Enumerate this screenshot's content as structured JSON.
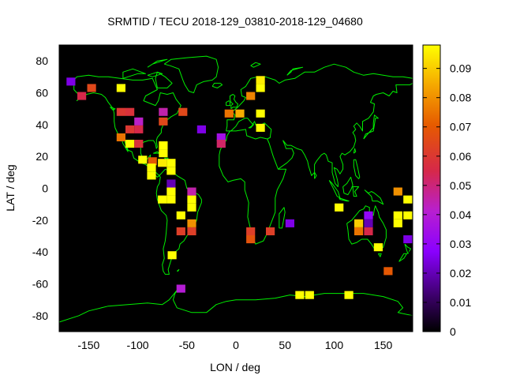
{
  "chart_data": {
    "type": "heatmap",
    "title": "SRMTID / TECU 2018-129_03810-2018-129_04680",
    "xlabel": "LON / deg",
    "ylabel": "LAT / deg",
    "xlim": [
      -180,
      180
    ],
    "ylim": [
      -90,
      90
    ],
    "xticks": [
      -150,
      -100,
      -50,
      0,
      50,
      100,
      150
    ],
    "yticks": [
      -80,
      -60,
      -40,
      -20,
      0,
      20,
      40,
      60,
      80
    ],
    "colorbar": {
      "min": 0,
      "max": 0.098,
      "ticks": [
        0,
        0.01,
        0.02,
        0.03,
        0.04,
        0.05,
        0.06,
        0.07,
        0.08,
        0.09
      ]
    },
    "cell_size_deg": {
      "lon": 9,
      "lat": 5
    },
    "cells": [
      {
        "lon": -168,
        "lat": 67,
        "value": 0.025
      },
      {
        "lon": -147,
        "lat": 63,
        "value": 0.065
      },
      {
        "lon": -157,
        "lat": 58,
        "value": 0.055
      },
      {
        "lon": -117,
        "lat": 63,
        "value": 0.098
      },
      {
        "lon": -117,
        "lat": 48,
        "value": 0.06
      },
      {
        "lon": -108,
        "lat": 48,
        "value": 0.058
      },
      {
        "lon": -99,
        "lat": 42,
        "value": 0.042
      },
      {
        "lon": -99,
        "lat": 37,
        "value": 0.055
      },
      {
        "lon": -108,
        "lat": 37,
        "value": 0.06
      },
      {
        "lon": -117,
        "lat": 32,
        "value": 0.075
      },
      {
        "lon": -108,
        "lat": 28,
        "value": 0.098
      },
      {
        "lon": -99,
        "lat": 28,
        "value": 0.058
      },
      {
        "lon": -74,
        "lat": 48,
        "value": 0.045
      },
      {
        "lon": -74,
        "lat": 42,
        "value": 0.065
      },
      {
        "lon": -54,
        "lat": 48,
        "value": 0.065
      },
      {
        "lon": -74,
        "lat": 27,
        "value": 0.098
      },
      {
        "lon": -74,
        "lat": 22,
        "value": 0.098
      },
      {
        "lon": -95,
        "lat": 18,
        "value": 0.098
      },
      {
        "lon": -85,
        "lat": 17,
        "value": 0.07
      },
      {
        "lon": -75,
        "lat": 16,
        "value": 0.095
      },
      {
        "lon": -86,
        "lat": 13,
        "value": 0.098
      },
      {
        "lon": -86,
        "lat": 8,
        "value": 0.098
      },
      {
        "lon": -66,
        "lat": 16,
        "value": 0.098
      },
      {
        "lon": -66,
        "lat": 11,
        "value": 0.098
      },
      {
        "lon": -66,
        "lat": 3,
        "value": 0.02
      },
      {
        "lon": -66,
        "lat": -2,
        "value": 0.098
      },
      {
        "lon": -66,
        "lat": -7,
        "value": 0.098
      },
      {
        "lon": -75,
        "lat": -7,
        "value": 0.098
      },
      {
        "lon": -45,
        "lat": -2,
        "value": 0.045
      },
      {
        "lon": -45,
        "lat": -7,
        "value": 0.098
      },
      {
        "lon": -45,
        "lat": -12,
        "value": 0.098
      },
      {
        "lon": -56,
        "lat": -17,
        "value": 0.098
      },
      {
        "lon": -45,
        "lat": -22,
        "value": 0.08
      },
      {
        "lon": -56,
        "lat": -27,
        "value": 0.062
      },
      {
        "lon": -45,
        "lat": -27,
        "value": 0.062
      },
      {
        "lon": -65,
        "lat": -42,
        "value": 0.098
      },
      {
        "lon": -56,
        "lat": -63,
        "value": 0.04
      },
      {
        "lon": -35,
        "lat": 37,
        "value": 0.025
      },
      {
        "lon": -15,
        "lat": 32,
        "value": 0.035
      },
      {
        "lon": -15,
        "lat": 28,
        "value": 0.052
      },
      {
        "lon": -7,
        "lat": 47,
        "value": 0.075
      },
      {
        "lon": 4,
        "lat": 47,
        "value": 0.085
      },
      {
        "lon": 15,
        "lat": 58,
        "value": 0.078
      },
      {
        "lon": 25,
        "lat": 68,
        "value": 0.095
      },
      {
        "lon": 25,
        "lat": 63,
        "value": 0.098
      },
      {
        "lon": 25,
        "lat": 47,
        "value": 0.098
      },
      {
        "lon": 25,
        "lat": 38,
        "value": 0.098
      },
      {
        "lon": 15,
        "lat": -27,
        "value": 0.062
      },
      {
        "lon": 15,
        "lat": -32,
        "value": 0.068
      },
      {
        "lon": 35,
        "lat": -27,
        "value": 0.062
      },
      {
        "lon": 55,
        "lat": -22,
        "value": 0.025
      },
      {
        "lon": 65,
        "lat": -67,
        "value": 0.098
      },
      {
        "lon": 75,
        "lat": -67,
        "value": 0.098
      },
      {
        "lon": 115,
        "lat": -67,
        "value": 0.098
      },
      {
        "lon": 105,
        "lat": -12,
        "value": 0.098
      },
      {
        "lon": 125,
        "lat": -22,
        "value": 0.09
      },
      {
        "lon": 125,
        "lat": -27,
        "value": 0.075
      },
      {
        "lon": 135,
        "lat": -17,
        "value": 0.03
      },
      {
        "lon": 135,
        "lat": -22,
        "value": 0.02
      },
      {
        "lon": 135,
        "lat": -27,
        "value": 0.055
      },
      {
        "lon": 145,
        "lat": -37,
        "value": 0.098
      },
      {
        "lon": 155,
        "lat": -52,
        "value": 0.07
      },
      {
        "lon": 165,
        "lat": -2,
        "value": 0.08
      },
      {
        "lon": 165,
        "lat": -17,
        "value": 0.098
      },
      {
        "lon": 165,
        "lat": -22,
        "value": 0.098
      },
      {
        "lon": 175,
        "lat": -7,
        "value": 0.098
      },
      {
        "lon": 175,
        "lat": -17,
        "value": 0.098
      },
      {
        "lon": 175,
        "lat": -32,
        "value": 0.025
      }
    ]
  }
}
